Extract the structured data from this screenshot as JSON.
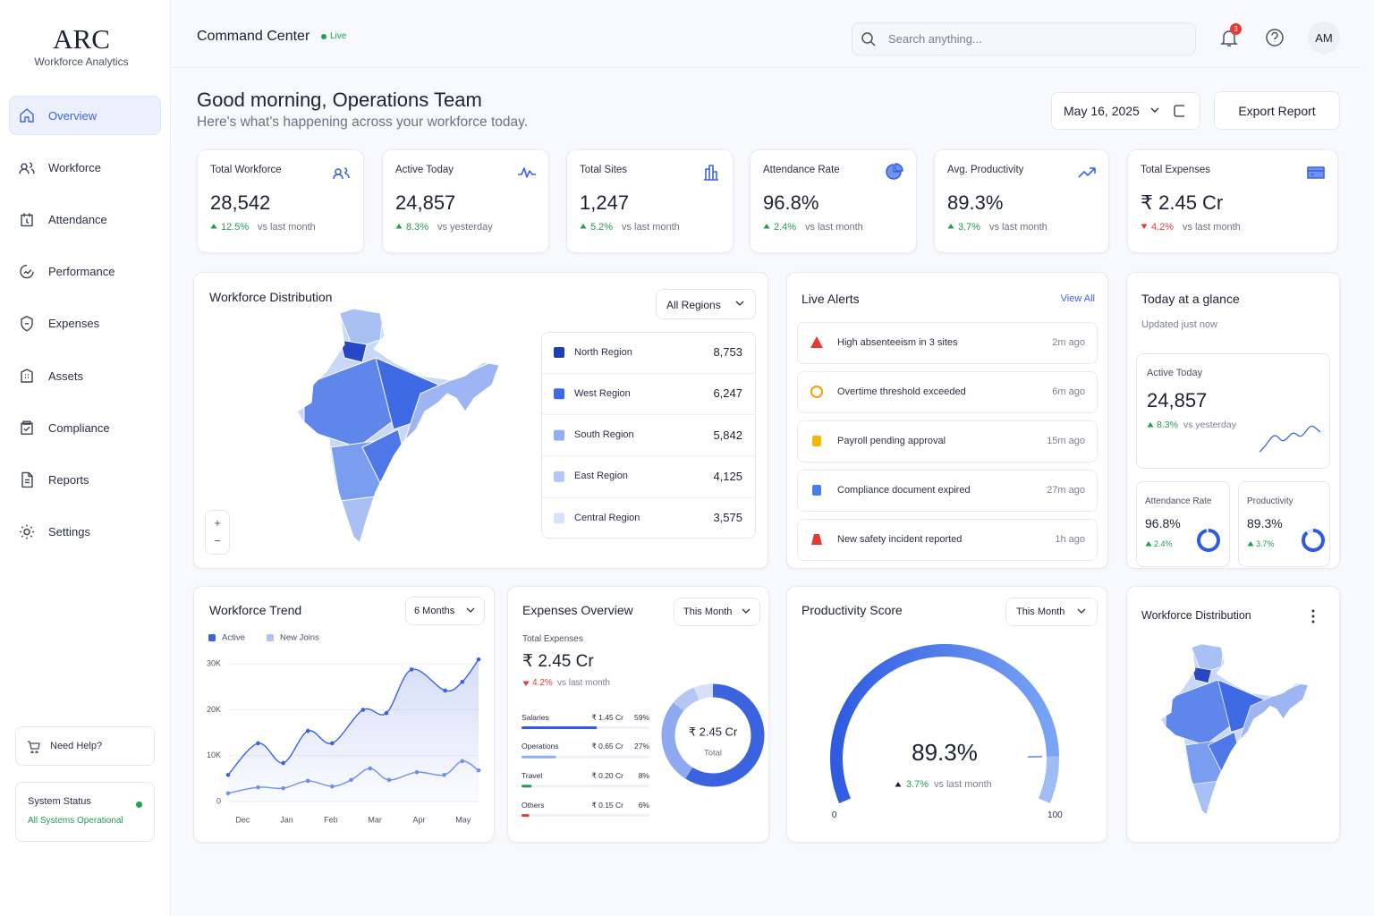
{
  "sidebar": {
    "logo": "ARC",
    "subtitle": "Workforce Analytics",
    "nav": [
      "Overview",
      "Workforce",
      "Attendance",
      "Performance",
      "Expenses",
      "Assets",
      "Compliance",
      "Reports",
      "Settings"
    ],
    "active": 0,
    "help": "Need Help?",
    "status": {
      "title": "System Status",
      "text": "All Systems Operational"
    }
  },
  "header": {
    "title": "Command Center",
    "live": "Live",
    "search": "Search anything...",
    "notifications": 3,
    "avatar": "AM"
  },
  "greeting": {
    "title": "Good morning, Operations Team",
    "subtitle": "Here's what's happening across your workforce today.",
    "date": "May 16, 2025",
    "export": "Export Report"
  },
  "kpis": [
    {
      "label": "Total Workforce",
      "value": "28,542",
      "change": "12.5%",
      "compare": "vs last month",
      "trend": "up"
    },
    {
      "label": "Active Today",
      "value": "24,857",
      "change": "8.3%",
      "compare": "vs yesterday",
      "trend": "up"
    },
    {
      "label": "Total Sites",
      "value": "1,247",
      "change": "5.2%",
      "compare": "vs last month",
      "trend": "up"
    },
    {
      "label": "Attendance Rate",
      "value": "96.8%",
      "change": "2.4%",
      "compare": "vs last month",
      "trend": "up"
    },
    {
      "label": "Avg. Productivity",
      "value": "89.3%",
      "change": "3.7%",
      "compare": "vs last month",
      "trend": "up"
    },
    {
      "label": "Total Expenses",
      "value": "₹ 2.45 Cr",
      "change": "4.2%",
      "compare": "vs last month",
      "trend": "down"
    }
  ],
  "distribution": {
    "title": "Workforce Distribution",
    "filter": "All Regions",
    "zoom": [
      "+",
      "−"
    ],
    "regions": [
      {
        "name": "North Region",
        "value": "8,753",
        "color": "#1f3fb0"
      },
      {
        "name": "West Region",
        "value": "6,247",
        "color": "#3f6ae6"
      },
      {
        "name": "South Region",
        "value": "5,842",
        "color": "#8fb0f3"
      },
      {
        "name": "East Region",
        "value": "4,125",
        "color": "#b3c8f7"
      },
      {
        "name": "Central Region",
        "value": "3,575",
        "color": "#d8e3fb"
      }
    ]
  },
  "alerts": {
    "title": "Live Alerts",
    "view_all": "View All",
    "items": [
      {
        "text": "High absenteeism in 3 sites",
        "time": "2m ago",
        "level": "critical"
      },
      {
        "text": "Overtime threshold exceeded",
        "time": "6m ago",
        "level": "warning"
      },
      {
        "text": "Payroll pending approval",
        "time": "15m ago",
        "level": "pending"
      },
      {
        "text": "Compliance document expired",
        "time": "27m ago",
        "level": "info"
      },
      {
        "text": "New safety incident reported",
        "time": "1h ago",
        "level": "incident"
      }
    ]
  },
  "glance": {
    "title": "Today at a glance",
    "updated": "Updated just now",
    "active": {
      "label": "Active Today",
      "value": "24,857",
      "change": "8.3%",
      "compare": "vs yesterday"
    },
    "attendance": {
      "label": "Attendance Rate",
      "value": 96.8,
      "value_label": "96.8%",
      "change": "2.4%"
    },
    "productivity": {
      "label": "Productivity",
      "value": 89.3,
      "value_label": "89.3%",
      "change": "3.7%"
    }
  },
  "trend": {
    "type": "line",
    "title": "Workforce Trend",
    "filter": "6 Months",
    "xlim": [
      -0.33,
      5.35
    ],
    "xticks": [
      {
        "value": 0,
        "label": "Dec"
      },
      {
        "value": 1,
        "label": "Jan"
      },
      {
        "value": 2,
        "label": "Feb"
      },
      {
        "value": 3,
        "label": "Mar"
      },
      {
        "value": 4,
        "label": "Apr"
      },
      {
        "value": 5,
        "label": "May"
      }
    ],
    "ylim": [
      0,
      32000
    ],
    "yticks": [
      0,
      {
        "value": 10000,
        "label": "10K"
      },
      {
        "value": 20000,
        "label": "20K"
      },
      {
        "value": 30000,
        "label": "30K"
      }
    ],
    "grid": true,
    "series": [
      {
        "name": "Active",
        "color": "#3b63e0",
        "x": [
          -0.33,
          0.35,
          0.92,
          1.48,
          2.03,
          2.73,
          3.26,
          3.83,
          4.59,
          4.98,
          5.35
        ],
        "values": [
          5800,
          12700,
          8400,
          15400,
          12700,
          20000,
          19300,
          28800,
          24200,
          26100,
          31000
        ]
      },
      {
        "name": "New Joins",
        "color": "#6f8fec",
        "x": [
          -0.33,
          0.35,
          0.92,
          1.48,
          2.03,
          2.46,
          2.89,
          3.32,
          3.95,
          4.57,
          4.98,
          5.35
        ],
        "values": [
          1800,
          3100,
          2900,
          4500,
          3300,
          4700,
          7200,
          4700,
          6400,
          5800,
          8800,
          6800
        ]
      }
    ]
  },
  "expenses": {
    "type": "donut",
    "title": "Expenses Overview",
    "filter": "This Month",
    "total_label": "Total Expenses",
    "total": "₹ 2.45 Cr",
    "change": "4.2%",
    "compare": "vs last month",
    "center_label": "Total",
    "items": [
      {
        "name": "Salaries",
        "amount": "₹ 1.45 Cr",
        "share": 59,
        "share_label": "59%",
        "color": "#2f5be0",
        "donut_color": "#3b63e0"
      },
      {
        "name": "Operations",
        "amount": "₹ 0.65 Cr",
        "share": 27,
        "share_label": "27%",
        "color": "#8db0f5",
        "donut_color": "#8fa9f0"
      },
      {
        "name": "Travel",
        "amount": "₹ 0.20 Cr",
        "share": 8,
        "share_label": "8%",
        "color": "#1f9d55",
        "donut_color": "#b5c6f5"
      },
      {
        "name": "Others",
        "amount": "₹ 0.15 Cr",
        "share": 6,
        "share_label": "6%",
        "color": "#e53935",
        "donut_color": "#d6e0fa"
      }
    ]
  },
  "productivity": {
    "type": "gauge",
    "title": "Productivity Score",
    "filter": "This Month",
    "value": 89.3,
    "value_label": "89.3%",
    "min": 0,
    "max": 100,
    "change": "3.7%",
    "compare": "vs last month"
  },
  "distribution2": {
    "title": "Workforce Distribution"
  }
}
